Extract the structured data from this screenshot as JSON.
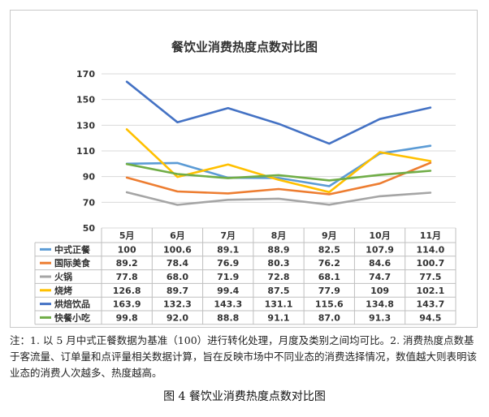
{
  "chart_data": {
    "type": "line",
    "title": "餐饮业消费热度点数对比图",
    "categories": [
      "5月",
      "6月",
      "7月",
      "8月",
      "9月",
      "10月",
      "11月"
    ],
    "ylim": [
      50,
      170
    ],
    "yticks": [
      50,
      70,
      90,
      110,
      130,
      150,
      170
    ],
    "grid": true,
    "legend": "table-bottom",
    "series": [
      {
        "name": "中式正餐",
        "color": "#5b9bd5",
        "values": [
          100,
          100.6,
          89.1,
          88.9,
          82.5,
          107.9,
          114.0
        ],
        "labels": [
          "100",
          "100.6",
          "89.1",
          "88.9",
          "82.5",
          "107.9",
          "114.0"
        ]
      },
      {
        "name": "国际美食",
        "color": "#ed7d31",
        "values": [
          89.2,
          78.4,
          76.9,
          80.3,
          76.2,
          84.6,
          100.7
        ],
        "labels": [
          "89.2",
          "78.4",
          "76.9",
          "80.3",
          "76.2",
          "84.6",
          "100.7"
        ]
      },
      {
        "name": "火锅",
        "color": "#a5a5a5",
        "values": [
          77.8,
          68.0,
          71.9,
          72.8,
          68.1,
          74.7,
          77.5
        ],
        "labels": [
          "77.8",
          "68.0",
          "71.9",
          "72.8",
          "68.1",
          "74.7",
          "77.5"
        ]
      },
      {
        "name": "烧烤",
        "color": "#ffc000",
        "values": [
          126.8,
          89.7,
          99.4,
          87.5,
          77.9,
          109,
          102.1
        ],
        "labels": [
          "126.8",
          "89.7",
          "99.4",
          "87.5",
          "77.9",
          "109",
          "102.1"
        ]
      },
      {
        "name": "烘焙饮品",
        "color": "#4472c4",
        "values": [
          163.9,
          132.3,
          143.3,
          131.1,
          115.6,
          134.8,
          143.7
        ],
        "labels": [
          "163.9",
          "132.3",
          "143.3",
          "131.1",
          "115.6",
          "134.8",
          "143.7"
        ]
      },
      {
        "name": "快餐小吃",
        "color": "#70ad47",
        "values": [
          99.8,
          92.0,
          88.8,
          91.1,
          87.0,
          91.3,
          94.5
        ],
        "labels": [
          "99.8",
          "92.0",
          "88.8",
          "91.1",
          "87.0",
          "91.3",
          "94.5"
        ]
      }
    ]
  },
  "note": "注：1. 以 5 月中式正餐数据为基准（100）进行转化处理，月度及类别之间均可比。2. 消费热度点数基于客流量、订单量和点评量相关数据计算，旨在反映市场中不同业态的消费选择情况，数值越大则表明该业态的消费人次越多、热度越高。",
  "caption": "图 4  餐饮业消费热度点数对比图"
}
